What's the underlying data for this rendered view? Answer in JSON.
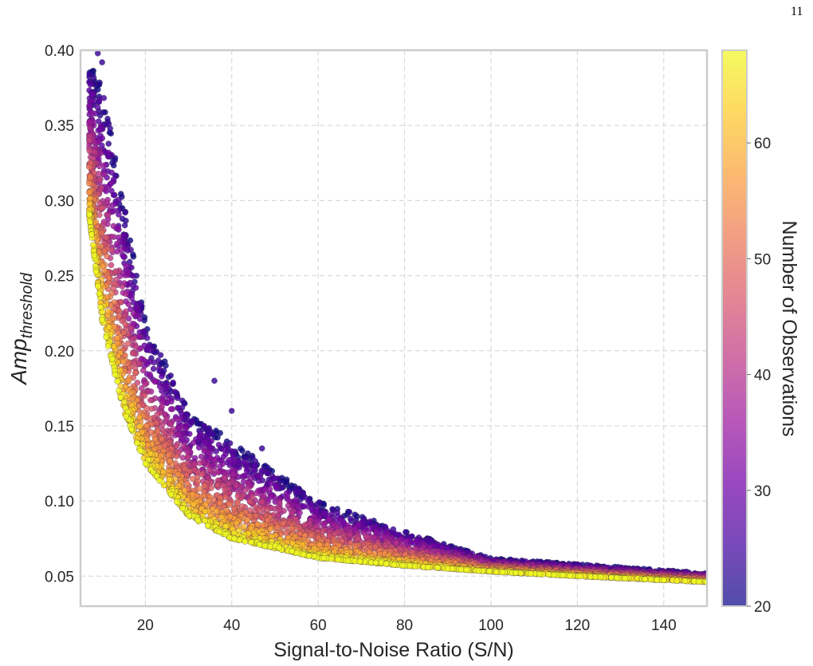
{
  "page": {
    "number": "11"
  },
  "chart_data": {
    "type": "scatter",
    "title": "",
    "xlabel": "Signal-to-Noise Ratio (S/N)",
    "ylabel": {
      "base": "Amp",
      "subscript": "threshold"
    },
    "xlim": [
      5,
      150
    ],
    "ylim": [
      0.03,
      0.4
    ],
    "xticks": [
      20,
      40,
      60,
      80,
      100,
      120,
      140
    ],
    "yticks": [
      0.05,
      0.1,
      0.15,
      0.2,
      0.25,
      0.3,
      0.35,
      0.4
    ],
    "xtick_labels": [
      "20",
      "40",
      "60",
      "80",
      "100",
      "120",
      "140"
    ],
    "ytick_labels": [
      "0.05",
      "0.10",
      "0.15",
      "0.20",
      "0.25",
      "0.30",
      "0.35",
      "0.40"
    ],
    "grid": true,
    "colorbar": {
      "label": "Number of Observations",
      "colormap": "plasma",
      "range": [
        20,
        68
      ],
      "ticks": [
        20,
        30,
        40,
        50,
        60
      ],
      "tick_labels": [
        "20",
        "30",
        "40",
        "50",
        "60"
      ]
    },
    "trend": {
      "description_points": [
        {
          "x": 7,
          "y_low": 0.29,
          "y_high": 0.39
        },
        {
          "x": 10,
          "y_low": 0.22,
          "y_high": 0.38
        },
        {
          "x": 15,
          "y_low": 0.16,
          "y_high": 0.3
        },
        {
          "x": 20,
          "y_low": 0.125,
          "y_high": 0.22
        },
        {
          "x": 30,
          "y_low": 0.09,
          "y_high": 0.16
        },
        {
          "x": 40,
          "y_low": 0.075,
          "y_high": 0.14
        },
        {
          "x": 60,
          "y_low": 0.062,
          "y_high": 0.1
        },
        {
          "x": 80,
          "y_low": 0.057,
          "y_high": 0.08
        },
        {
          "x": 100,
          "y_low": 0.053,
          "y_high": 0.062
        },
        {
          "x": 120,
          "y_low": 0.05,
          "y_high": 0.058
        },
        {
          "x": 150,
          "y_low": 0.046,
          "y_high": 0.052
        }
      ],
      "outliers": [
        {
          "x": 36,
          "y": 0.18
        },
        {
          "x": 40,
          "y": 0.16
        },
        {
          "x": 47,
          "y": 0.135
        },
        {
          "x": 9,
          "y": 0.398
        },
        {
          "x": 10,
          "y": 0.392
        }
      ]
    },
    "colors": {
      "grid": "#d9d9d9",
      "frame": "#cccccc",
      "plasma": [
        "#0d0887",
        "#46039f",
        "#7201a8",
        "#9c179e",
        "#bd3786",
        "#d8576b",
        "#ed7953",
        "#fb9f3a",
        "#fdca26",
        "#f0f921"
      ]
    }
  }
}
